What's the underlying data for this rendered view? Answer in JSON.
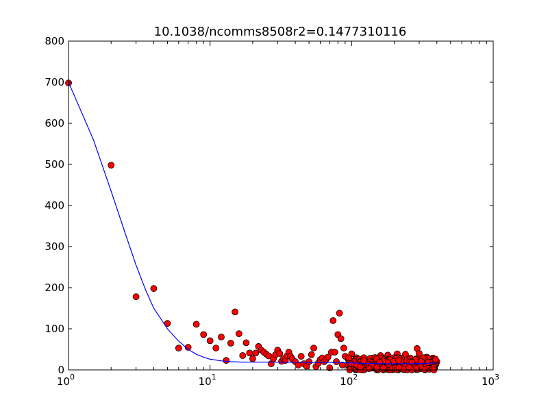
{
  "chart_data": {
    "type": "scatter",
    "title": "10.1038/ncomms8508r2=0.1477310116",
    "xlabel": "",
    "ylabel": "",
    "xscale": "log",
    "xlim": [
      1,
      1000
    ],
    "ylim": [
      0,
      800
    ],
    "grid": false,
    "x_tick_labels": [
      {
        "base": "10",
        "exp": "0"
      },
      {
        "base": "10",
        "exp": "1"
      },
      {
        "base": "10",
        "exp": "2"
      },
      {
        "base": "10",
        "exp": "3"
      }
    ],
    "y_tick_labels": [
      "0",
      "100",
      "200",
      "300",
      "400",
      "500",
      "600",
      "700",
      "800"
    ],
    "colors": {
      "points": "#ff0000",
      "point_edge": "#000000",
      "fit_line": "#0000ff"
    },
    "points_main": [
      [
        1,
        698
      ],
      [
        2,
        498
      ],
      [
        3,
        178
      ],
      [
        4,
        198
      ],
      [
        5,
        113
      ],
      [
        6,
        53
      ],
      [
        7,
        55
      ],
      [
        8,
        111
      ],
      [
        9,
        86
      ],
      [
        10,
        71
      ],
      [
        11,
        53
      ],
      [
        12,
        80
      ],
      [
        13,
        23
      ],
      [
        14,
        65
      ],
      [
        15,
        141
      ],
      [
        16,
        88
      ],
      [
        17,
        35
      ],
      [
        18,
        66
      ],
      [
        19,
        41
      ],
      [
        20,
        27
      ],
      [
        21,
        41
      ],
      [
        22,
        57
      ],
      [
        23,
        48
      ],
      [
        24,
        43
      ],
      [
        25,
        38
      ],
      [
        26,
        34
      ],
      [
        27,
        15
      ],
      [
        28,
        27
      ],
      [
        29,
        37
      ],
      [
        30,
        48
      ],
      [
        31,
        40
      ],
      [
        32,
        21
      ],
      [
        33,
        27
      ],
      [
        34,
        23
      ],
      [
        35,
        34
      ],
      [
        36,
        43
      ],
      [
        37,
        33
      ],
      [
        38,
        27
      ],
      [
        40,
        20
      ],
      [
        42,
        12
      ],
      [
        44,
        33
      ],
      [
        46,
        15
      ],
      [
        48,
        9
      ],
      [
        50,
        20
      ],
      [
        52,
        37
      ],
      [
        54,
        53
      ],
      [
        56,
        8
      ],
      [
        58,
        16
      ],
      [
        60,
        25
      ],
      [
        62,
        29
      ],
      [
        64,
        20
      ],
      [
        66,
        26
      ],
      [
        68,
        31
      ],
      [
        70,
        5
      ],
      [
        72,
        43
      ],
      [
        74,
        120
      ],
      [
        76,
        43
      ],
      [
        78,
        20
      ],
      [
        80,
        86
      ],
      [
        82,
        138
      ],
      [
        84,
        76
      ],
      [
        86,
        12
      ],
      [
        88,
        53
      ],
      [
        90,
        33
      ],
      [
        95,
        25
      ],
      [
        100,
        39
      ],
      [
        105,
        14
      ],
      [
        110,
        20
      ],
      [
        120,
        23
      ],
      [
        130,
        17
      ],
      [
        140,
        27
      ],
      [
        150,
        12
      ],
      [
        160,
        35
      ],
      [
        170,
        8
      ],
      [
        180,
        36
      ],
      [
        200,
        30
      ],
      [
        210,
        39
      ],
      [
        220,
        18
      ],
      [
        230,
        22
      ],
      [
        240,
        38
      ],
      [
        260,
        29
      ],
      [
        280,
        21
      ],
      [
        290,
        52
      ],
      [
        300,
        40
      ],
      [
        320,
        22
      ],
      [
        340,
        31
      ],
      [
        360,
        24
      ],
      [
        380,
        14
      ],
      [
        400,
        20
      ]
    ],
    "cluster_low": {
      "x_range": [
        95,
        410
      ],
      "count": 260,
      "y_range": [
        0,
        30
      ],
      "seed": 7
    },
    "fit_line": [
      [
        1,
        700
      ],
      [
        1.5,
        560
      ],
      [
        2,
        435
      ],
      [
        2.5,
        335
      ],
      [
        3,
        255
      ],
      [
        3.5,
        195
      ],
      [
        4,
        150
      ],
      [
        5,
        100
      ],
      [
        6,
        70
      ],
      [
        7,
        50
      ],
      [
        8,
        38
      ],
      [
        9,
        31
      ],
      [
        10,
        26
      ],
      [
        12,
        22
      ],
      [
        14,
        20
      ],
      [
        17,
        19
      ],
      [
        20,
        19
      ],
      [
        30,
        19
      ],
      [
        50,
        18
      ],
      [
        80,
        18
      ],
      [
        120,
        16
      ],
      [
        180,
        15
      ],
      [
        250,
        15
      ],
      [
        330,
        16
      ],
      [
        400,
        17
      ]
    ]
  }
}
